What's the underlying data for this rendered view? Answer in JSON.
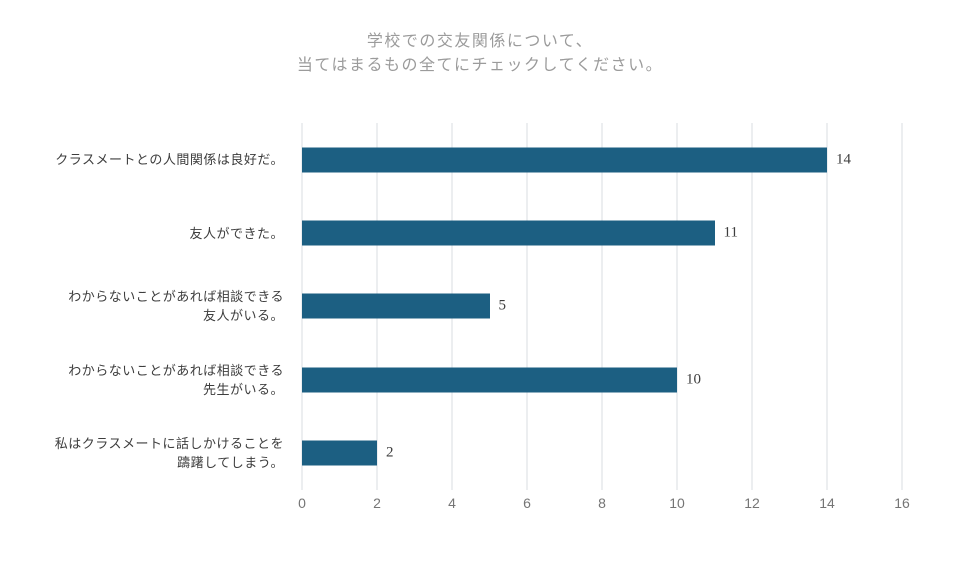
{
  "title": {
    "line1": "学校での交友関係について、",
    "line2": "当てはまるもの全てにチェックしてください。"
  },
  "chart_data": {
    "type": "bar",
    "orientation": "horizontal",
    "title": "学校での交友関係について、当てはまるもの全てにチェックしてください。",
    "categories": [
      "クラスメートとの人間関係は良好だ。",
      "友人ができた。",
      "わからないことがあれば相談できる友人がいる。",
      "わからないことがあれば相談できる先生がいる。",
      "私はクラスメートに話しかけることを躊躇してしまう。"
    ],
    "category_lines": [
      [
        "クラスメートとの人間関係は良好だ。"
      ],
      [
        "友人ができた。"
      ],
      [
        "わからないことがあれば相談できる",
        "友人がいる。"
      ],
      [
        "わからないことがあれば相談できる",
        "先生がいる。"
      ],
      [
        "私はクラスメートに話しかけることを",
        "躊躇してしまう。"
      ]
    ],
    "values": [
      14,
      11,
      5,
      10,
      2
    ],
    "value_labels": [
      "14",
      "11",
      "5",
      "10",
      "2"
    ],
    "xlabel": "",
    "ylabel": "",
    "xlim": [
      0,
      16
    ],
    "xticks": [
      0,
      2,
      4,
      6,
      8,
      10,
      12,
      14,
      16
    ],
    "grid": "vertical-on",
    "legend": "none",
    "bar_color": "#1c5f82"
  },
  "colors": {
    "bar": "#1c5f82",
    "gridline": "#dadce0",
    "title_text": "#9b9b9b",
    "category_text": "#3d3d3d",
    "value_text": "#3d3d3d",
    "tick_text": "#757575",
    "background": "#ffffff"
  }
}
